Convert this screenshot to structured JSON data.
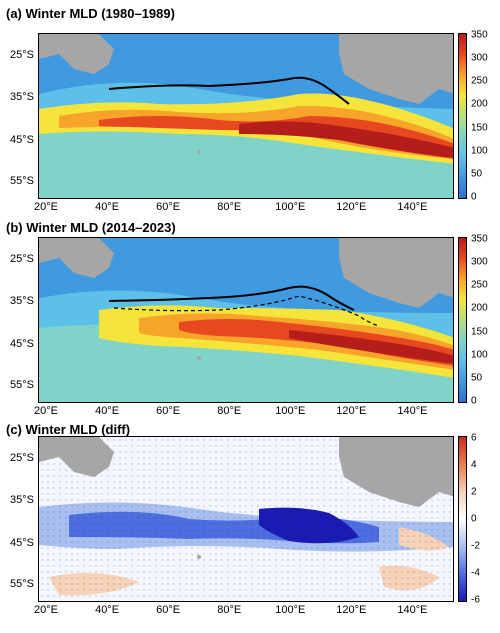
{
  "panels": [
    {
      "title": "(a) Winter MLD (1980–1989)",
      "colorbar": {
        "ticks": [
          "350",
          "300",
          "250",
          "200",
          "150",
          "100",
          "50",
          "0"
        ]
      },
      "kind": "mld"
    },
    {
      "title": "(b) Winter MLD (2014–2023)",
      "colorbar": {
        "ticks": [
          "350",
          "300",
          "250",
          "200",
          "150",
          "100",
          "50",
          "0"
        ]
      },
      "kind": "mld"
    },
    {
      "title": "(c) Winter MLD (diff)",
      "colorbar": {
        "ticks": [
          "6",
          "4",
          "2",
          "0",
          "-2",
          "-4",
          "-6"
        ]
      },
      "kind": "diff"
    }
  ],
  "axes": {
    "lat_labels": [
      "25°S",
      "35°S",
      "45°S",
      "55°S"
    ],
    "lon_labels": [
      "20°E",
      "40°E",
      "60°E",
      "80°E",
      "100°E",
      "120°E",
      "140°E"
    ]
  },
  "colors": {
    "land": "#a6a6a6",
    "mld_scale": [
      "#2f6fd1",
      "#3f9ae0",
      "#5cc0e8",
      "#7fd3c8",
      "#b6e07a",
      "#f5e53a",
      "#f7a52a",
      "#e8481f",
      "#b51d1b"
    ],
    "diff_scale": [
      "#1a1ab4",
      "#4d6ee0",
      "#a8bff2",
      "#ffffff",
      "#f5d2b8",
      "#e8804a",
      "#cc2a1a"
    ]
  }
}
